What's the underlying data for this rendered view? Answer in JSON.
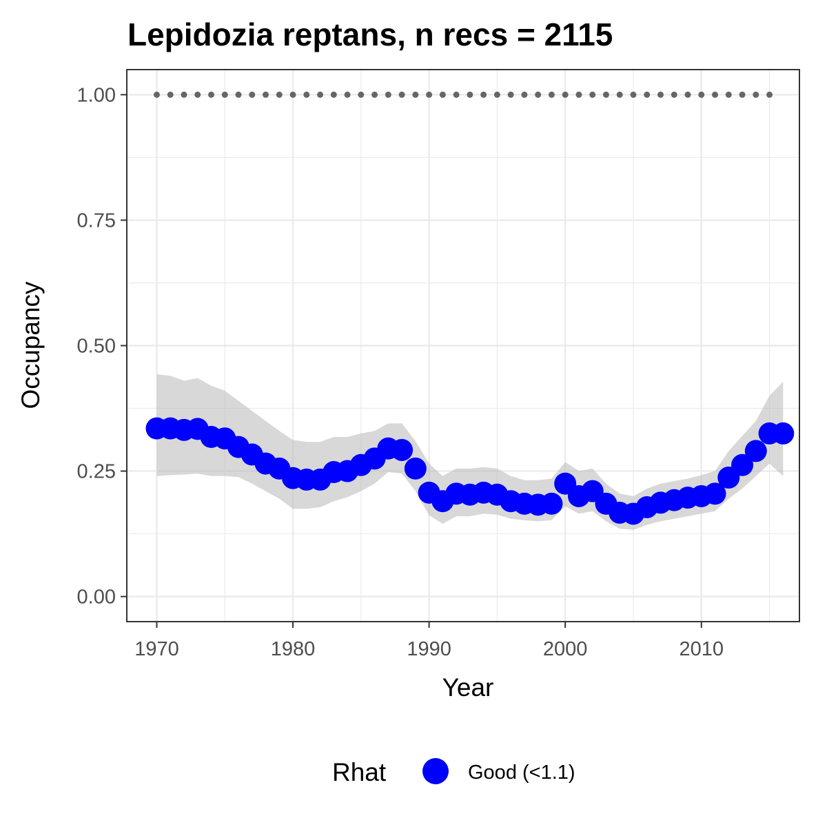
{
  "chart_data": {
    "type": "line",
    "title": "Lepidozia reptans, n recs = 2115",
    "xlabel": "Year",
    "ylabel": "Occupancy",
    "xlim": [
      1967.8,
      2017.2
    ],
    "ylim": [
      -0.05,
      1.05
    ],
    "x_ticks": [
      1970,
      1980,
      1990,
      2000,
      2010
    ],
    "x_tick_labels": [
      "1970",
      "1980",
      "1990",
      "2000",
      "2010"
    ],
    "y_ticks": [
      0.0,
      0.25,
      0.5,
      0.75,
      1.0
    ],
    "y_tick_labels": [
      "0.00",
      "0.25",
      "0.50",
      "0.75",
      "1.00"
    ],
    "grid": true,
    "legend": {
      "position": "bottom",
      "title": "Rhat",
      "entries": [
        {
          "label": "Good (<1.1)",
          "color": "#0000ff"
        }
      ]
    },
    "colors": {
      "points": "#0000ff",
      "ribbon": "#bebebe",
      "reference_dots": "#666666",
      "grid": "#ebebeb",
      "panel_border": "#333333"
    },
    "series": [
      {
        "role": "occupancy_mean",
        "x": [
          1970,
          1971,
          1972,
          1973,
          1974,
          1975,
          1976,
          1977,
          1978,
          1979,
          1980,
          1981,
          1982,
          1983,
          1984,
          1985,
          1986,
          1987,
          1988,
          1989,
          1990,
          1991,
          1992,
          1993,
          1994,
          1995,
          1996,
          1997,
          1998,
          1999,
          2000,
          2001,
          2002,
          2003,
          2004,
          2005,
          2006,
          2007,
          2008,
          2009,
          2010,
          2011,
          2012,
          2013,
          2014,
          2015,
          2016
        ],
        "y": [
          0.335,
          0.335,
          0.332,
          0.334,
          0.318,
          0.315,
          0.298,
          0.283,
          0.265,
          0.255,
          0.236,
          0.233,
          0.233,
          0.248,
          0.25,
          0.262,
          0.275,
          0.295,
          0.292,
          0.255,
          0.207,
          0.19,
          0.205,
          0.203,
          0.207,
          0.203,
          0.19,
          0.185,
          0.183,
          0.185,
          0.225,
          0.2,
          0.21,
          0.185,
          0.167,
          0.165,
          0.178,
          0.187,
          0.192,
          0.197,
          0.2,
          0.205,
          0.237,
          0.262,
          0.29,
          0.325,
          0.325
        ]
      },
      {
        "role": "credible_interval",
        "x": [
          1970,
          1971,
          1972,
          1973,
          1974,
          1975,
          1976,
          1977,
          1978,
          1979,
          1980,
          1981,
          1982,
          1983,
          1984,
          1985,
          1986,
          1987,
          1988,
          1989,
          1990,
          1991,
          1992,
          1993,
          1994,
          1995,
          1996,
          1997,
          1998,
          1999,
          2000,
          2001,
          2002,
          2003,
          2004,
          2005,
          2006,
          2007,
          2008,
          2009,
          2010,
          2011,
          2012,
          2013,
          2014,
          2015,
          2016
        ],
        "lower": [
          0.24,
          0.242,
          0.243,
          0.245,
          0.24,
          0.24,
          0.238,
          0.225,
          0.21,
          0.195,
          0.175,
          0.175,
          0.178,
          0.19,
          0.198,
          0.21,
          0.225,
          0.248,
          0.245,
          0.21,
          0.162,
          0.145,
          0.16,
          0.16,
          0.165,
          0.163,
          0.155,
          0.152,
          0.15,
          0.152,
          0.18,
          0.165,
          0.17,
          0.15,
          0.135,
          0.133,
          0.143,
          0.15,
          0.155,
          0.16,
          0.165,
          0.17,
          0.195,
          0.215,
          0.24,
          0.265,
          0.24
        ],
        "upper": [
          0.443,
          0.44,
          0.43,
          0.435,
          0.42,
          0.41,
          0.39,
          0.37,
          0.35,
          0.33,
          0.312,
          0.308,
          0.308,
          0.318,
          0.318,
          0.325,
          0.33,
          0.345,
          0.345,
          0.31,
          0.265,
          0.24,
          0.255,
          0.255,
          0.258,
          0.255,
          0.24,
          0.232,
          0.232,
          0.235,
          0.268,
          0.25,
          0.255,
          0.225,
          0.205,
          0.2,
          0.215,
          0.225,
          0.23,
          0.235,
          0.242,
          0.25,
          0.29,
          0.32,
          0.35,
          0.4,
          0.428
        ]
      },
      {
        "role": "reference_dots",
        "x": [
          1970,
          1971,
          1972,
          1973,
          1974,
          1975,
          1976,
          1977,
          1978,
          1979,
          1980,
          1981,
          1982,
          1983,
          1984,
          1985,
          1986,
          1987,
          1988,
          1989,
          1990,
          1991,
          1992,
          1993,
          1994,
          1995,
          1996,
          1997,
          1998,
          1999,
          2000,
          2001,
          2002,
          2003,
          2004,
          2005,
          2006,
          2007,
          2008,
          2009,
          2010,
          2011,
          2012,
          2013,
          2014,
          2015
        ],
        "y": 1.0
      }
    ]
  }
}
